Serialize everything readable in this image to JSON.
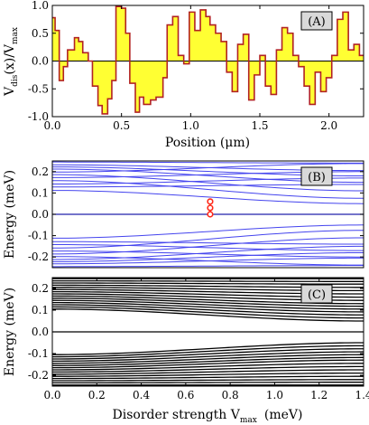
{
  "chart_data": [
    {
      "type": "area",
      "panel_label": "(A)",
      "xlabel": "Position (μm)",
      "ylabel_main": "V",
      "ylabel_sub1": "dis",
      "ylabel_mid": "(x)/V",
      "ylabel_sub2": "max",
      "xlim": [
        0,
        2.25
      ],
      "ylim": [
        -1,
        1
      ],
      "x_ticks": [
        "0.0",
        "0.5",
        "1.0",
        "1.5",
        "2.0"
      ],
      "x_tick_values": [
        0,
        0.5,
        1,
        1.5,
        2
      ],
      "y_ticks": [
        "-1.0",
        "-0.5",
        "0.0",
        "0.5",
        "1.0"
      ],
      "y_tick_values": [
        -1,
        -0.5,
        0,
        0.5,
        1
      ],
      "fill_color": "#ffff33",
      "line_color": "#b22222",
      "x": [
        0.0,
        0.02,
        0.02,
        0.05,
        0.05,
        0.08,
        0.08,
        0.11,
        0.11,
        0.16,
        0.16,
        0.19,
        0.19,
        0.22,
        0.22,
        0.26,
        0.26,
        0.29,
        0.29,
        0.33,
        0.33,
        0.36,
        0.36,
        0.4,
        0.4,
        0.43,
        0.43,
        0.46,
        0.46,
        0.5,
        0.5,
        0.53,
        0.53,
        0.56,
        0.56,
        0.6,
        0.6,
        0.63,
        0.63,
        0.66,
        0.66,
        0.71,
        0.71,
        0.75,
        0.75,
        0.8,
        0.8,
        0.83,
        0.83,
        0.87,
        0.87,
        0.91,
        0.91,
        0.95,
        0.95,
        0.99,
        0.99,
        1.03,
        1.03,
        1.07,
        1.07,
        1.11,
        1.11,
        1.14,
        1.14,
        1.18,
        1.18,
        1.22,
        1.22,
        1.26,
        1.26,
        1.3,
        1.3,
        1.34,
        1.34,
        1.38,
        1.38,
        1.42,
        1.42,
        1.46,
        1.46,
        1.5,
        1.5,
        1.54,
        1.54,
        1.58,
        1.58,
        1.62,
        1.62,
        1.66,
        1.66,
        1.7,
        1.7,
        1.74,
        1.74,
        1.78,
        1.78,
        1.82,
        1.82,
        1.86,
        1.86,
        1.9,
        1.9,
        1.94,
        1.94,
        1.98,
        1.98,
        2.02,
        2.02,
        2.06,
        2.06,
        2.1,
        2.1,
        2.14,
        2.14,
        2.18,
        2.18,
        2.22,
        2.22,
        2.25
      ],
      "values": [
        0.78,
        0.78,
        0.55,
        0.55,
        -0.35,
        -0.35,
        -0.1,
        -0.1,
        0.2,
        0.2,
        0.42,
        0.42,
        0.35,
        0.35,
        0.15,
        0.15,
        0.0,
        0.0,
        -0.45,
        -0.45,
        -0.8,
        -0.8,
        -0.95,
        -0.95,
        -0.68,
        -0.68,
        -0.35,
        -0.35,
        0.98,
        0.98,
        0.95,
        0.95,
        0.5,
        0.5,
        -0.4,
        -0.4,
        -0.92,
        -0.92,
        -0.65,
        -0.65,
        -0.78,
        -0.78,
        -0.7,
        -0.7,
        -0.65,
        -0.65,
        -0.3,
        -0.3,
        0.65,
        0.65,
        0.8,
        0.8,
        0.1,
        0.1,
        -0.05,
        -0.05,
        0.88,
        0.88,
        0.55,
        0.55,
        0.92,
        0.92,
        0.8,
        0.8,
        0.65,
        0.65,
        0.5,
        0.5,
        0.35,
        0.35,
        -0.2,
        -0.2,
        -0.55,
        -0.55,
        0.3,
        0.3,
        0.48,
        0.48,
        -0.7,
        -0.7,
        -0.25,
        -0.25,
        0.1,
        0.1,
        -0.45,
        -0.45,
        -0.6,
        -0.6,
        0.2,
        0.2,
        0.6,
        0.6,
        0.5,
        0.5,
        0.1,
        0.1,
        -0.1,
        -0.1,
        -0.45,
        -0.45,
        -0.78,
        -0.78,
        -0.2,
        -0.2,
        -0.55,
        -0.55,
        -0.3,
        -0.3,
        0.1,
        0.1,
        0.75,
        0.75,
        0.88,
        0.88,
        0.2,
        0.2,
        0.3,
        0.3,
        0.1,
        0.1
      ]
    },
    {
      "type": "line",
      "panel_label": "(B)",
      "ylabel": "Energy (meV)",
      "xlim": [
        0,
        1.4
      ],
      "ylim": [
        -0.25,
        0.25
      ],
      "y_ticks": [
        "-0.2",
        "-0.1",
        "0.0",
        "0.1",
        "0.2"
      ],
      "y_tick_values": [
        -0.2,
        -0.1,
        0,
        0.1,
        0.2
      ],
      "line_color": "#4444ee",
      "zero_line_color": "#2222aa",
      "marker_color": "#ff2a1a",
      "markers": [
        {
          "x": 0.71,
          "y": 0.06
        },
        {
          "x": 0.71,
          "y": 0.03
        },
        {
          "x": 0.71,
          "y": 0.0
        }
      ],
      "series_start": [
        0.245,
        0.232,
        0.222,
        0.212,
        0.198,
        0.186,
        0.172,
        0.158,
        0.142,
        0.128,
        0.112,
        -0.112,
        -0.128,
        -0.142,
        -0.158,
        -0.172,
        -0.186,
        -0.198,
        -0.212,
        -0.222,
        -0.232,
        -0.245
      ],
      "series_end": [
        0.24,
        0.205,
        0.18,
        0.15,
        0.238,
        0.11,
        0.2,
        0.075,
        0.17,
        0.14,
        0.05,
        -0.05,
        -0.14,
        -0.17,
        -0.075,
        -0.2,
        -0.11,
        -0.238,
        -0.15,
        -0.18,
        -0.205,
        -0.24
      ]
    },
    {
      "type": "line",
      "panel_label": "(C)",
      "ylabel": "Energy (meV)",
      "xlabel_main": "Disorder strength V",
      "xlabel_sub": "max",
      "xlabel_unit": "(meV)",
      "xlim": [
        0,
        1.4
      ],
      "ylim": [
        -0.25,
        0.25
      ],
      "x_ticks": [
        "0.0",
        "0.2",
        "0.4",
        "0.6",
        "0.8",
        "1.0",
        "1.2",
        "1.4"
      ],
      "x_tick_values": [
        0,
        0.2,
        0.4,
        0.6,
        0.8,
        1.0,
        1.2,
        1.4
      ],
      "y_ticks": [
        "-0.2",
        "-0.1",
        "0.0",
        "0.1",
        "0.2"
      ],
      "y_tick_values": [
        -0.2,
        -0.1,
        0,
        0.1,
        0.2
      ],
      "line_color": "#000000",
      "series_start": [
        0.245,
        0.235,
        0.225,
        0.215,
        0.205,
        0.195,
        0.185,
        0.175,
        0.165,
        0.155,
        0.145,
        0.135,
        0.125,
        0.115,
        0.105,
        -0.105,
        -0.115,
        -0.125,
        -0.135,
        -0.145,
        -0.155,
        -0.165,
        -0.175,
        -0.185,
        -0.195,
        -0.205,
        -0.215,
        -0.225,
        -0.235,
        -0.245
      ],
      "series_end": [
        0.245,
        0.232,
        0.22,
        0.205,
        0.19,
        0.175,
        0.16,
        0.145,
        0.13,
        0.118,
        0.105,
        0.092,
        0.078,
        0.064,
        0.05,
        -0.05,
        -0.064,
        -0.078,
        -0.092,
        -0.105,
        -0.118,
        -0.13,
        -0.145,
        -0.16,
        -0.175,
        -0.19,
        -0.205,
        -0.22,
        -0.232,
        -0.245
      ]
    }
  ]
}
